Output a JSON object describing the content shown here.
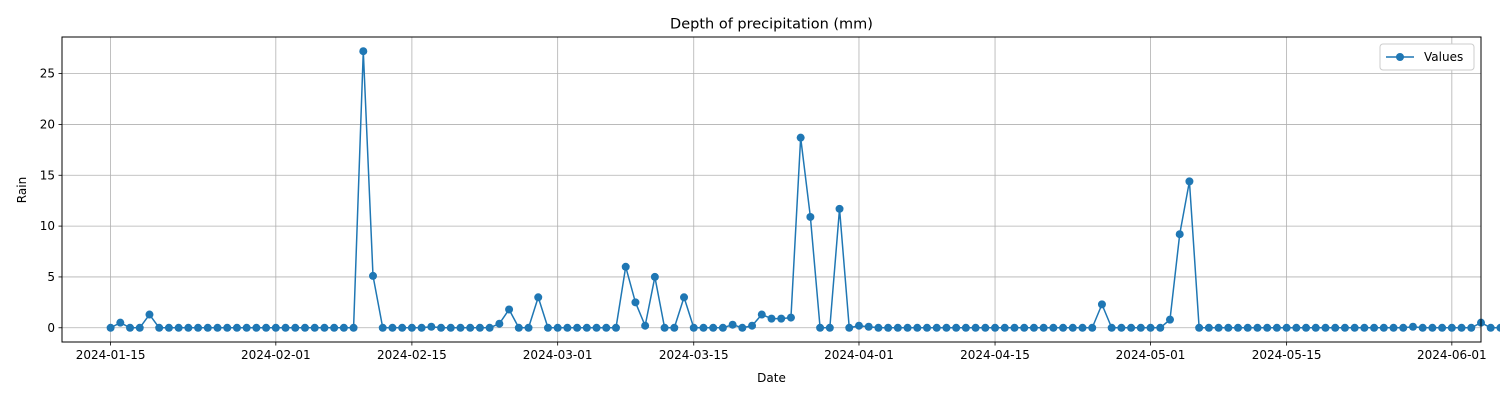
{
  "chart_data": {
    "type": "line",
    "title": "Depth of precipitation (mm)",
    "xlabel": "Date",
    "ylabel": "Rain",
    "x_ticks": [
      "2024-01-15",
      "2024-02-01",
      "2024-02-15",
      "2024-03-01",
      "2024-03-15",
      "2024-04-01",
      "2024-04-15",
      "2024-05-01",
      "2024-05-15",
      "2024-06-01"
    ],
    "y_ticks": [
      0,
      5,
      10,
      15,
      20,
      25
    ],
    "xlim": [
      "2024-01-10",
      "2024-06-04"
    ],
    "ylim": [
      -1.4,
      28.6
    ],
    "grid": true,
    "legend_position": "top-right",
    "series": [
      {
        "name": "Values",
        "color": "#1f77b4",
        "marker": "circle",
        "start_date": "2024-01-15",
        "values": [
          0.0,
          0.5,
          0.0,
          0.0,
          1.3,
          0.0,
          0.0,
          0.0,
          0.0,
          0.0,
          0.0,
          0.0,
          0.0,
          0.0,
          0.0,
          0.0,
          0.0,
          0.0,
          0.0,
          0.0,
          0.0,
          0.0,
          0.0,
          0.0,
          0.0,
          0.0,
          27.2,
          5.1,
          0.0,
          0.0,
          0.0,
          0.0,
          0.0,
          0.1,
          0.0,
          0.0,
          0.0,
          0.0,
          0.0,
          0.0,
          0.4,
          1.8,
          0.0,
          0.0,
          3.0,
          0.0,
          0.0,
          0.0,
          0.0,
          0.0,
          0.0,
          0.0,
          0.0,
          6.0,
          2.5,
          0.2,
          5.0,
          0.0,
          0.0,
          3.0,
          0.0,
          0.0,
          0.0,
          0.0,
          0.3,
          0.0,
          0.2,
          1.3,
          0.9,
          0.9,
          1.0,
          18.7,
          10.9,
          0.0,
          0.0,
          11.7,
          0.0,
          0.2,
          0.1,
          0.0,
          0.0,
          0.0,
          0.0,
          0.0,
          0.0,
          0.0,
          0.0,
          0.0,
          0.0,
          0.0,
          0.0,
          0.0,
          0.0,
          0.0,
          0.0,
          0.0,
          0.0,
          0.0,
          0.0,
          0.0,
          0.0,
          0.0,
          2.3,
          0.0,
          0.0,
          0.0,
          0.0,
          0.0,
          0.0,
          0.8,
          9.2,
          14.4,
          0.0,
          0.0,
          0.0,
          0.0,
          0.0,
          0.0,
          0.0,
          0.0,
          0.0,
          0.0,
          0.0,
          0.0,
          0.0,
          0.0,
          0.0,
          0.0,
          0.0,
          0.0,
          0.0,
          0.0,
          0.0,
          0.0,
          0.1,
          0.0,
          0.0,
          0.0,
          0.0,
          0.0,
          0.0,
          0.5,
          0.0,
          0.0,
          0.0,
          0.0,
          0.6
        ]
      }
    ]
  }
}
